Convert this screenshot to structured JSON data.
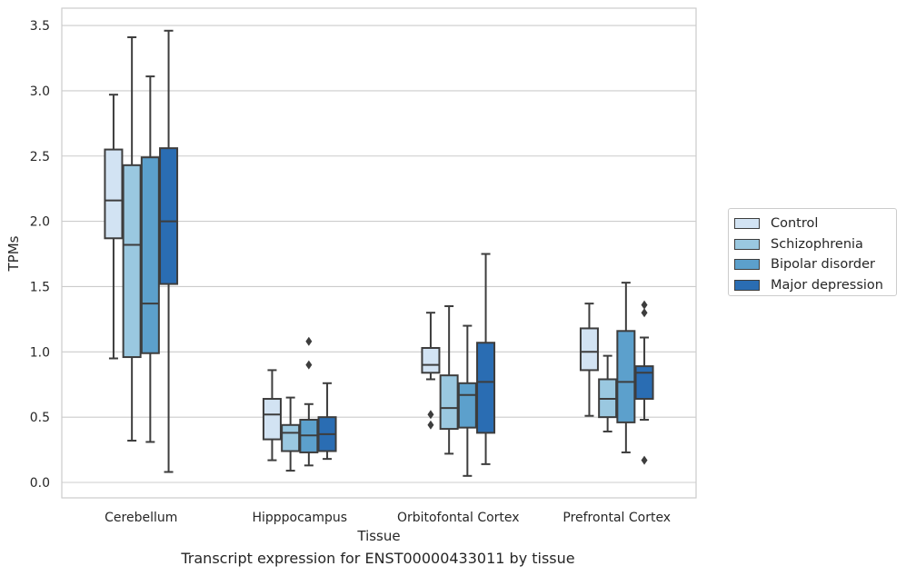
{
  "chart_data": {
    "type": "box",
    "xlabel": "Tissue",
    "ylabel": "TPMs",
    "caption": "Transcript expression for ENST00000433011 by tissue",
    "ylim": [
      -0.1,
      3.65
    ],
    "yticks": [
      "0.0",
      "0.5",
      "1.0",
      "1.5",
      "2.0",
      "2.5",
      "3.0",
      "3.5"
    ],
    "grid": true,
    "legend_position": "right",
    "categories": [
      "Cerebellum",
      "Hipppocampus",
      "Orbitofontal Cortex",
      "Prefrontal Cortex"
    ],
    "series": [
      {
        "name": "Control",
        "color": "#d2e3f3",
        "boxes": [
          {
            "whisker_low": 0.95,
            "q1": 1.87,
            "median": 2.16,
            "q3": 2.55,
            "whisker_high": 2.97,
            "outliers": []
          },
          {
            "whisker_low": 0.17,
            "q1": 0.33,
            "median": 0.52,
            "q3": 0.64,
            "whisker_high": 0.86,
            "outliers": []
          },
          {
            "whisker_low": 0.79,
            "q1": 0.84,
            "median": 0.9,
            "q3": 1.03,
            "whisker_high": 1.3,
            "outliers": [
              0.44,
              0.52
            ]
          },
          {
            "whisker_low": 0.51,
            "q1": 0.86,
            "median": 1.0,
            "q3": 1.18,
            "whisker_high": 1.37,
            "outliers": []
          }
        ]
      },
      {
        "name": "Schizophrenia",
        "color": "#9ac8e0",
        "boxes": [
          {
            "whisker_low": 0.32,
            "q1": 0.96,
            "median": 1.82,
            "q3": 2.43,
            "whisker_high": 3.41,
            "outliers": []
          },
          {
            "whisker_low": 0.09,
            "q1": 0.24,
            "median": 0.38,
            "q3": 0.44,
            "whisker_high": 0.65,
            "outliers": []
          },
          {
            "whisker_low": 0.22,
            "q1": 0.41,
            "median": 0.57,
            "q3": 0.82,
            "whisker_high": 1.35,
            "outliers": []
          },
          {
            "whisker_low": 0.39,
            "q1": 0.5,
            "median": 0.64,
            "q3": 0.79,
            "whisker_high": 0.97,
            "outliers": []
          }
        ]
      },
      {
        "name": "Bipolar disorder",
        "color": "#5ca0cc",
        "boxes": [
          {
            "whisker_low": 0.31,
            "q1": 0.99,
            "median": 1.37,
            "q3": 2.49,
            "whisker_high": 3.11,
            "outliers": []
          },
          {
            "whisker_low": 0.13,
            "q1": 0.23,
            "median": 0.36,
            "q3": 0.48,
            "whisker_high": 0.6,
            "outliers": [
              0.9,
              1.08
            ]
          },
          {
            "whisker_low": 0.05,
            "q1": 0.42,
            "median": 0.67,
            "q3": 0.76,
            "whisker_high": 1.2,
            "outliers": []
          },
          {
            "whisker_low": 0.23,
            "q1": 0.46,
            "median": 0.77,
            "q3": 1.16,
            "whisker_high": 1.53,
            "outliers": []
          }
        ]
      },
      {
        "name": "Major depression",
        "color": "#2a6db3",
        "boxes": [
          {
            "whisker_low": 0.08,
            "q1": 1.52,
            "median": 2.0,
            "q3": 2.56,
            "whisker_high": 3.46,
            "outliers": []
          },
          {
            "whisker_low": 0.18,
            "q1": 0.24,
            "median": 0.37,
            "q3": 0.5,
            "whisker_high": 0.76,
            "outliers": []
          },
          {
            "whisker_low": 0.14,
            "q1": 0.38,
            "median": 0.77,
            "q3": 1.07,
            "whisker_high": 1.75,
            "outliers": []
          },
          {
            "whisker_low": 0.48,
            "q1": 0.64,
            "median": 0.84,
            "q3": 0.89,
            "whisker_high": 1.11,
            "outliers": [
              0.17,
              1.3,
              1.36
            ]
          }
        ]
      }
    ]
  }
}
